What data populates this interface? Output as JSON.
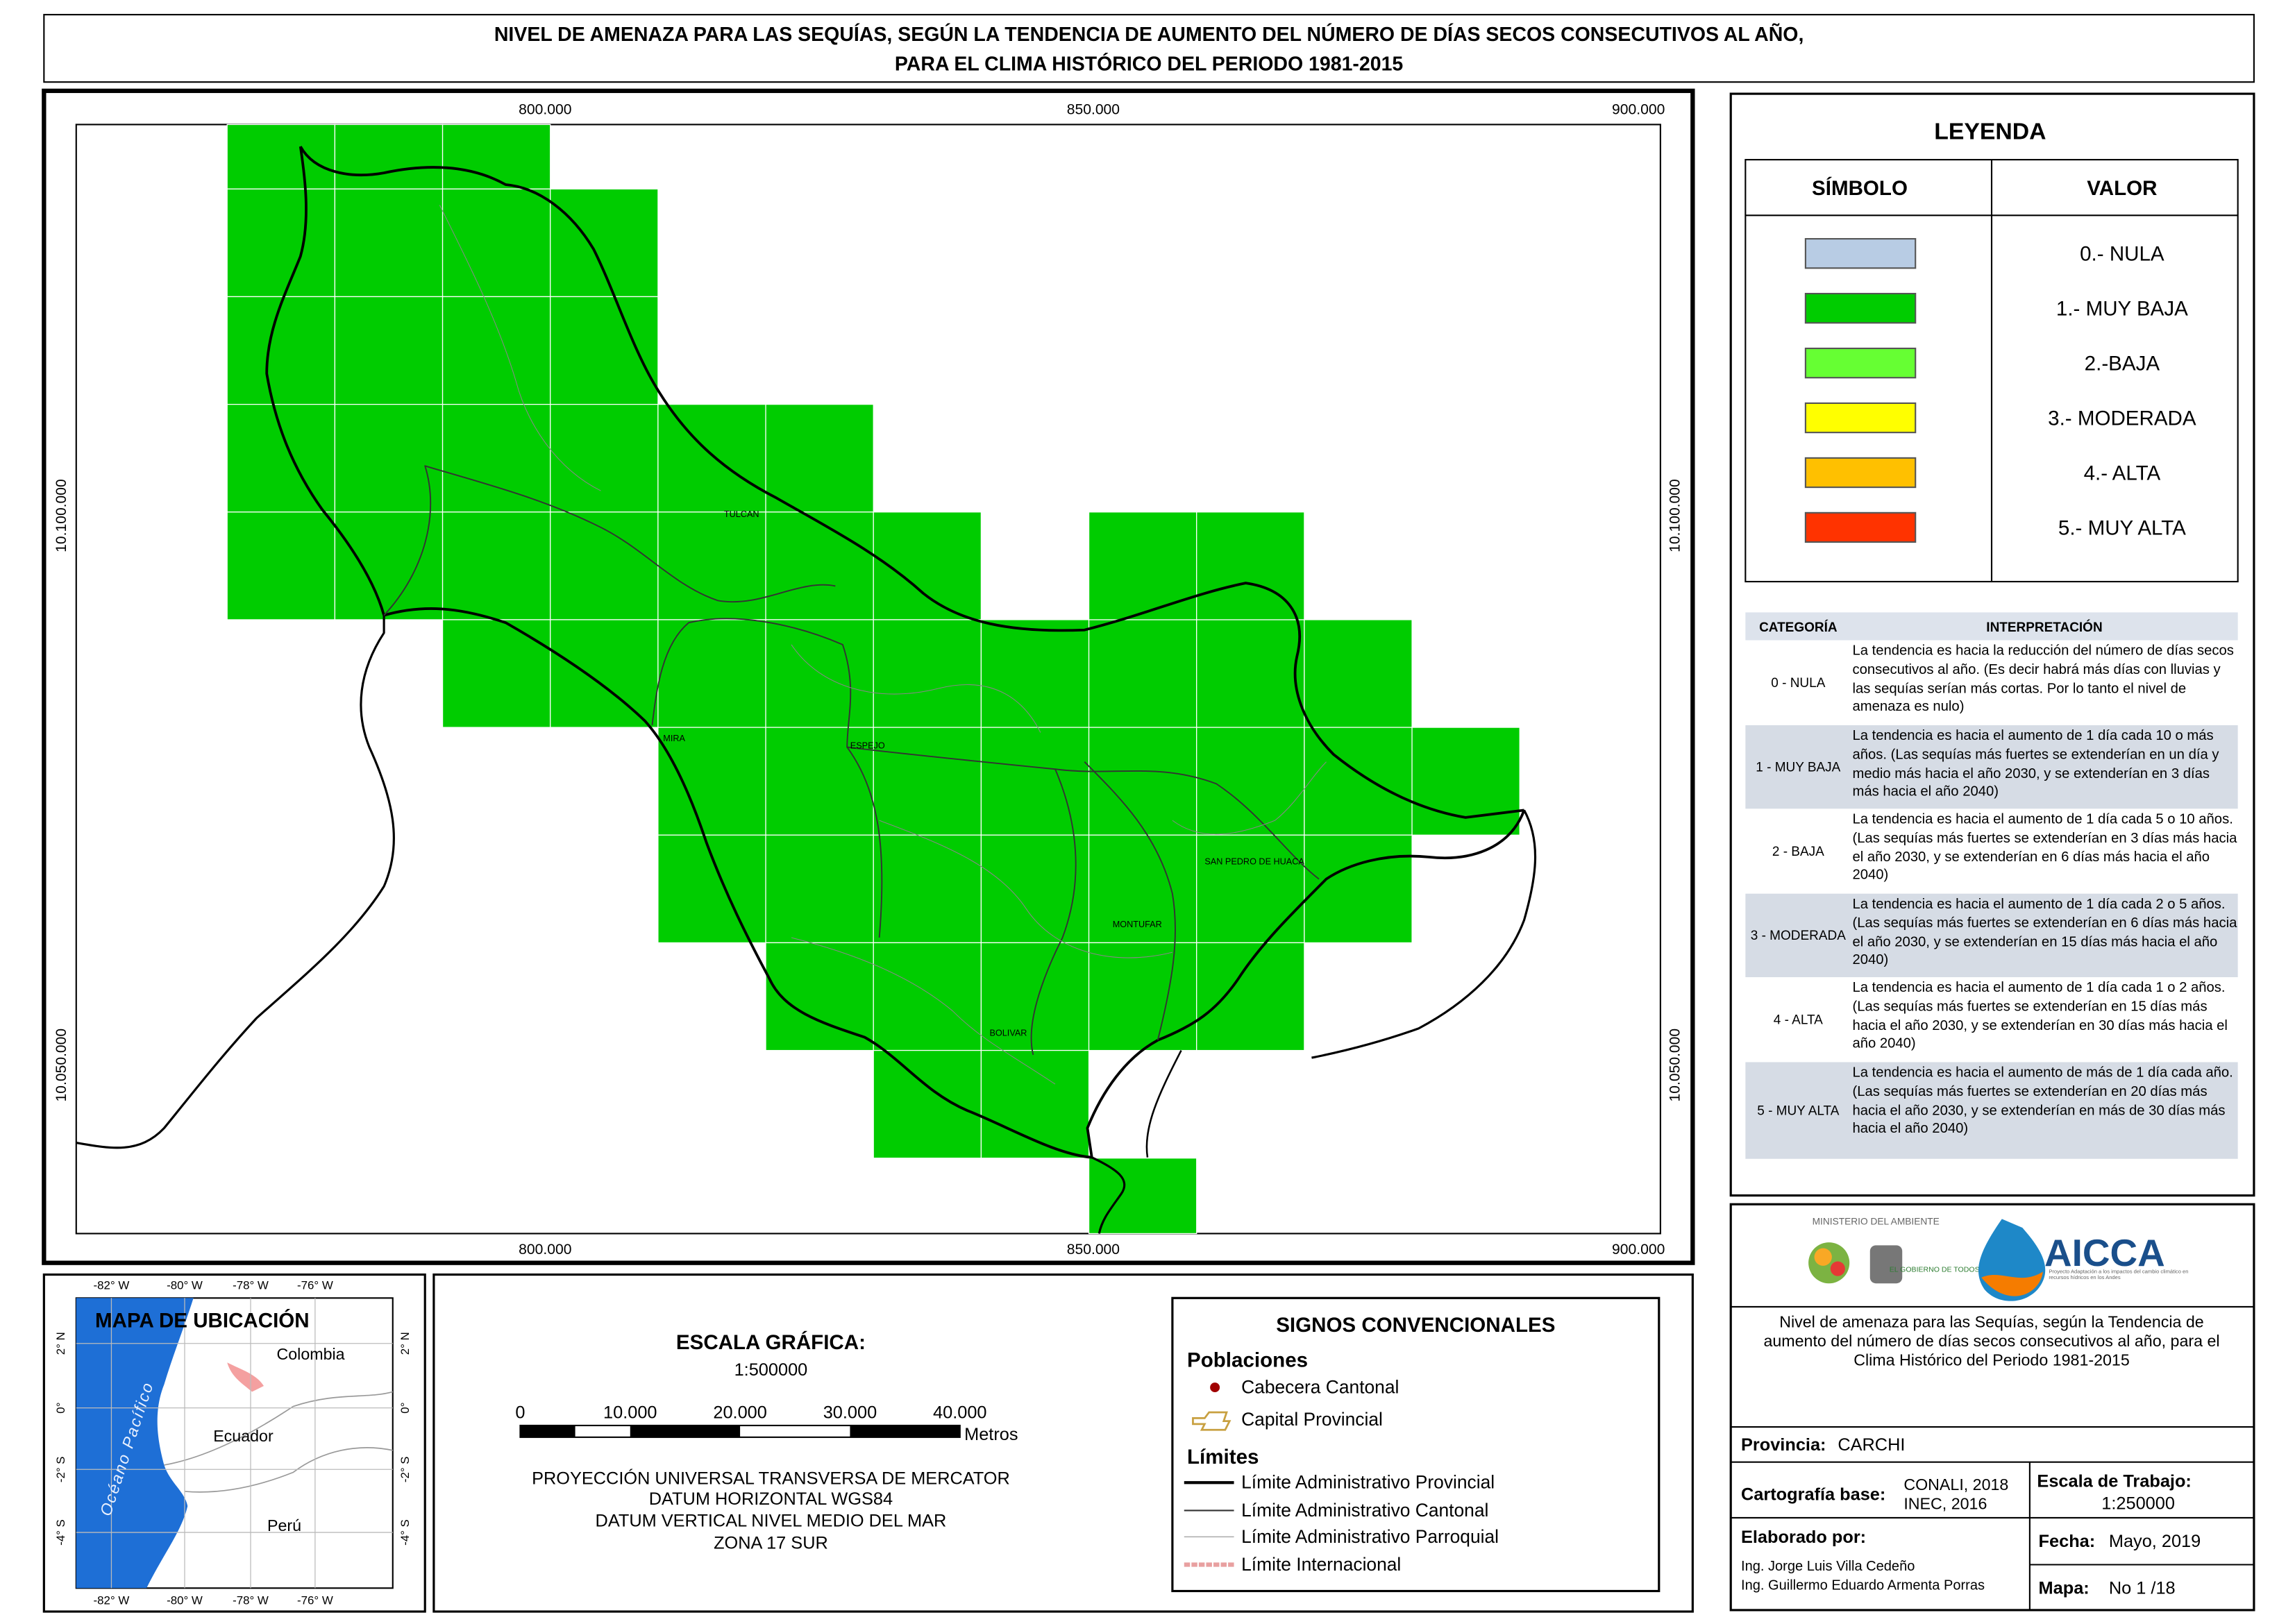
{
  "header": {
    "title_lines": [
      "NIVEL DE AMENAZA PARA LAS SEQUÍAS, SEGÚN LA TENDENCIA DE AUMENTO DEL NÚMERO DE DÍAS SECOS CONSECUTIVOS AL AÑO,",
      "PARA EL CLIMA HISTÓRICO DEL PERIODO 1981-2015"
    ]
  },
  "map": {
    "x_labels": [
      "800.000",
      "850.000",
      "900.000"
    ],
    "y_labels": [
      "10.100.000",
      "10.050.000"
    ],
    "places": [
      "TULCAN",
      "MIRA",
      "ESPEJO",
      "SAN PEDRO DE HUACA",
      "MONTUFAR",
      "BOLIVAR"
    ]
  },
  "legend": {
    "title": "LEYENDA",
    "symbol_header": "SÍMBOLO",
    "value_header": "VALOR",
    "items": [
      {
        "label": "0.- NULA",
        "color": "#b8cce4"
      },
      {
        "label": "1.- MUY BAJA",
        "color": "#00cc00"
      },
      {
        "label": "2.-BAJA",
        "color": "#66ff33"
      },
      {
        "label": "3.- MODERADA",
        "color": "#ffff00"
      },
      {
        "label": "4.- ALTA",
        "color": "#ffc000"
      },
      {
        "label": "5.- MUY ALTA",
        "color": "#ff3300"
      }
    ]
  },
  "interpretation": {
    "headers": [
      "CATEGORÍA",
      "INTERPRETACIÓN"
    ],
    "rows": [
      [
        "0 - NULA",
        "La tendencia es hacia la reducción del número de días secos consecutivos al año. (Es decir habrá más días con lluvias y las sequías serían más cortas. Por lo tanto el nivel de amenaza es nulo)"
      ],
      [
        "1 - MUY BAJA",
        "La tendencia es hacia el aumento de 1 día cada 10 o más años. (Las sequías más fuertes se extenderían en un día y medio más hacia el año 2030, y se extenderían en 3 días más hacia el año 2040)"
      ],
      [
        "2 - BAJA",
        "La tendencia es hacia el aumento de 1 día cada 5 o 10 años. (Las sequías más fuertes se extenderían en 3 días más hacia el año 2030, y se extenderían en 6 días más hacia el año 2040)"
      ],
      [
        "3 - MODERADA",
        "La tendencia es hacia el aumento de 1 día cada 2 o 5 años. (Las sequías más fuertes se extenderían en 6 días más hacia el año 2030, y se extenderían en 15 días más hacia el año 2040)"
      ],
      [
        "4 - ALTA",
        "La tendencia es hacia el aumento de 1 día cada 1 o 2 años. (Las sequías más fuertes se extenderían en 15 días más hacia el año 2030, y se extenderían en 30 días más hacia el año 2040)"
      ],
      [
        "5 - MUY ALTA",
        "La tendencia es hacia el aumento de más de 1 día cada año. (Las sequías más fuertes se extenderían en 20 días más hacia el año 2030, y se extenderían en más de 30 días más hacia el año 2040)"
      ]
    ]
  },
  "location_map": {
    "title": "MAPA DE UBICACIÓN",
    "lon_labels": [
      "-82° W",
      "-80° W",
      "-78° W",
      "-76° W"
    ],
    "lat_labels": [
      "2° N",
      "0°",
      "-2° S",
      "-4° S"
    ],
    "countries": [
      "Colombia",
      "Ecuador",
      "Perú"
    ],
    "ocean": "Océano Pacífico"
  },
  "scale": {
    "title": "ESCALA GRÁFICA:",
    "ratio": "1:500000",
    "labels": [
      "0",
      "10.000",
      "20.000",
      "30.000",
      "40.000"
    ],
    "unit": "Metros",
    "projection": [
      "PROYECCIÓN UNIVERSAL TRANSVERSA DE MERCATOR",
      "DATUM HORIZONTAL WGS84",
      "DATUM VERTICAL NIVEL MEDIO DEL MAR",
      "ZONA 17 SUR"
    ]
  },
  "conventions": {
    "title": "SIGNOS CONVENCIONALES",
    "populations_title": "Poblaciones",
    "populations": [
      "Cabecera Cantonal",
      "Capital Provincial"
    ],
    "limits_title": "Límites",
    "limits": [
      "Límite Administrativo Provincial",
      "Límite Administrativo Cantonal",
      "Límite Administrativo Parroquial",
      "Límite Internacional"
    ]
  },
  "logos": {
    "ministry": "MINISTERIO DEL AMBIENTE",
    "government": "EL GOBIERNO DE TODOS",
    "aicca": "AICCA",
    "aicca_subtitle": "Proyecto Adaptación a los impactos del cambio climático en recursos hídricos en los Andes"
  },
  "info": {
    "description": "Nivel de amenaza para las Sequías, según la Tendencia de aumento del número de días secos consecutivos al año, para el Clima Histórico del Periodo 1981-2015",
    "province_label": "Provincia:",
    "province": "CARCHI",
    "cartography_label": "Cartografía base:",
    "cartography": [
      "CONALI, 2018",
      "INEC, 2016"
    ],
    "work_scale_label": "Escala de Trabajo:",
    "work_scale": "1:250000",
    "author_label": "Elaborado por:",
    "authors": [
      "Ing. Jorge Luis Villa Cedeño",
      "Ing. Guillermo Eduardo Armenta Porras"
    ],
    "date_label": "Fecha:",
    "date": "Mayo, 2019",
    "map_label": "Mapa:",
    "map_number": "No 1 /18"
  }
}
